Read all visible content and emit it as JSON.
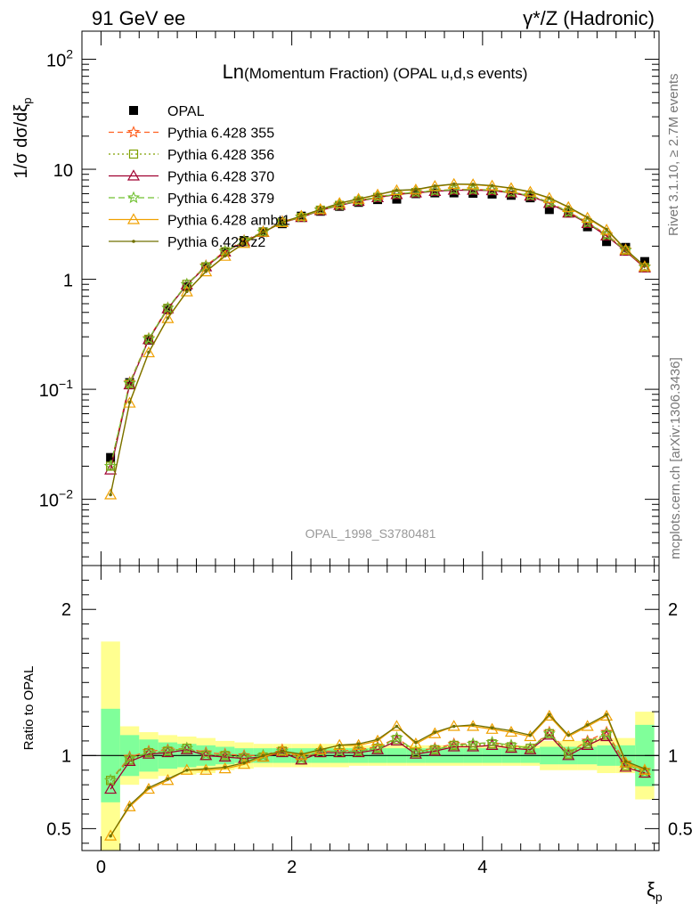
{
  "header": {
    "left": "91 GeV ee",
    "right": "γ*/Z (Hadronic)"
  },
  "side_labels": {
    "rivet": "Rivet 3.1.10, ≥ 2.7M events",
    "mcplots": "mcplots.cern.ch [arXiv:1306.3436]"
  },
  "colors": {
    "opal": "#000000",
    "p355": "#ff6020",
    "p356": "#80a000",
    "p370": "#a00030",
    "p379": "#70c030",
    "ambt1": "#f0a000",
    "z2": "#707000",
    "band_inner": "#80ff9a",
    "band_outer": "#ffff90"
  },
  "chart_data": [
    {
      "type": "scatter",
      "title_main": "Ln",
      "title_rest": "(Momentum Fraction) (OPAL u,d,s events)",
      "ylabel": "1/σ dσ/dξ",
      "ylabel_sub": "p",
      "watermark": "OPAL_1998_S3780481",
      "yscale": "log",
      "ylim": [
        0.0025,
        180
      ],
      "xlim": [
        -0.2,
        5.85
      ],
      "yticks": [
        {
          "v": 0.01,
          "label": "10",
          "exp": "−2"
        },
        {
          "v": 0.1,
          "label": "10",
          "exp": "−1"
        },
        {
          "v": 1,
          "label": "1",
          "exp": ""
        },
        {
          "v": 10,
          "label": "10",
          "exp": ""
        },
        {
          "v": 100,
          "label": "10",
          "exp": "2"
        }
      ],
      "x": [
        0.1,
        0.3,
        0.5,
        0.7,
        0.9,
        1.1,
        1.3,
        1.5,
        1.7,
        1.9,
        2.1,
        2.3,
        2.5,
        2.7,
        2.9,
        3.1,
        3.3,
        3.5,
        3.7,
        3.9,
        4.1,
        4.3,
        4.5,
        4.7,
        4.9,
        5.1,
        5.3,
        5.5,
        5.7
      ],
      "series": [
        {
          "name": "OPAL",
          "key": "opal",
          "marker": "square",
          "values": [
            0.024,
            0.115,
            0.28,
            0.53,
            0.86,
            1.3,
            1.78,
            2.25,
            2.7,
            3.2,
            3.75,
            4.15,
            4.6,
            5.0,
            5.3,
            5.35,
            6.0,
            6.1,
            6.1,
            6.05,
            5.95,
            5.8,
            5.5,
            4.3,
            4.0,
            3.0,
            2.2,
            1.95,
            1.45
          ]
        },
        {
          "name": "Pythia 6.428 355",
          "key": "p355",
          "marker": "star",
          "dash": "6,4",
          "values": [
            0.02,
            0.115,
            0.29,
            0.55,
            0.9,
            1.33,
            1.8,
            2.25,
            2.7,
            3.35,
            3.7,
            4.3,
            4.75,
            5.2,
            5.6,
            6.0,
            6.2,
            6.4,
            6.55,
            6.55,
            6.5,
            6.2,
            5.8,
            5.0,
            4.1,
            3.3,
            2.55,
            1.85,
            1.3
          ]
        },
        {
          "name": "Pythia 6.428 356",
          "key": "p356",
          "marker": "opensquare",
          "dash": "2,3",
          "values": [
            0.02,
            0.112,
            0.285,
            0.545,
            0.9,
            1.3,
            1.78,
            2.2,
            2.68,
            3.3,
            3.65,
            4.25,
            4.7,
            5.15,
            5.55,
            5.95,
            6.15,
            6.35,
            6.5,
            6.5,
            6.45,
            6.15,
            5.75,
            4.95,
            4.05,
            3.25,
            2.5,
            1.82,
            1.28
          ]
        },
        {
          "name": "Pythia 6.428 370",
          "key": "p370",
          "marker": "triangle",
          "dash": "",
          "values": [
            0.0185,
            0.11,
            0.283,
            0.54,
            0.89,
            1.3,
            1.77,
            2.2,
            2.67,
            3.28,
            3.65,
            4.22,
            4.7,
            5.12,
            5.52,
            5.9,
            6.1,
            6.3,
            6.45,
            6.45,
            6.4,
            6.1,
            5.7,
            4.9,
            4.0,
            3.22,
            2.48,
            1.8,
            1.27
          ]
        },
        {
          "name": "Pythia 6.428 379",
          "key": "p379",
          "marker": "star",
          "dash": "7,4",
          "values": [
            0.02,
            0.113,
            0.287,
            0.547,
            0.9,
            1.31,
            1.79,
            2.22,
            2.69,
            3.31,
            3.67,
            4.27,
            4.72,
            5.17,
            5.57,
            5.97,
            6.17,
            6.37,
            6.52,
            6.52,
            6.47,
            6.17,
            5.77,
            4.97,
            4.07,
            3.27,
            2.52,
            1.83,
            1.29
          ]
        },
        {
          "name": "Pythia 6.428 ambt1",
          "key": "ambt1",
          "marker": "triangle",
          "dash": "",
          "values": [
            0.011,
            0.075,
            0.215,
            0.44,
            0.77,
            1.17,
            1.62,
            2.12,
            2.68,
            3.28,
            3.75,
            4.3,
            4.9,
            5.35,
            5.85,
            6.4,
            6.5,
            7.0,
            7.3,
            7.25,
            7.05,
            6.7,
            6.2,
            5.45,
            4.5,
            3.6,
            2.8,
            1.85,
            1.3
          ]
        },
        {
          "name": "Pythia 6.428 z2",
          "key": "z2",
          "marker": "dot",
          "dash": "",
          "values": [
            0.011,
            0.076,
            0.217,
            0.445,
            0.775,
            1.18,
            1.63,
            2.13,
            2.69,
            3.29,
            3.77,
            4.32,
            4.92,
            5.38,
            5.88,
            6.43,
            6.55,
            7.05,
            7.35,
            7.3,
            7.1,
            6.75,
            6.25,
            5.5,
            4.55,
            3.65,
            2.85,
            1.87,
            1.32
          ]
        }
      ]
    },
    {
      "type": "scatter",
      "ylabel": "Ratio to OPAL",
      "xlabel": "ξ",
      "xlabel_sub": "p",
      "ylim": [
        0.35,
        2.3
      ],
      "xlim": [
        -0.2,
        5.85
      ],
      "xticks": [
        0,
        2,
        4
      ],
      "yticks": [
        0.5,
        1,
        2
      ],
      "bands": {
        "x": [
          0.1,
          0.3,
          0.5,
          0.7,
          0.9,
          1.1,
          1.3,
          1.5,
          1.7,
          1.9,
          2.1,
          2.3,
          2.5,
          2.7,
          2.9,
          3.1,
          3.3,
          3.5,
          3.7,
          3.9,
          4.1,
          4.3,
          4.5,
          4.7,
          4.9,
          5.1,
          5.3,
          5.5,
          5.7
        ],
        "inner": [
          0.32,
          0.14,
          0.11,
          0.09,
          0.08,
          0.07,
          0.06,
          0.05,
          0.05,
          0.05,
          0.05,
          0.05,
          0.05,
          0.05,
          0.05,
          0.05,
          0.05,
          0.05,
          0.05,
          0.05,
          0.05,
          0.05,
          0.05,
          0.06,
          0.06,
          0.06,
          0.07,
          0.07,
          0.21
        ],
        "outer": [
          0.78,
          0.2,
          0.16,
          0.14,
          0.13,
          0.12,
          0.1,
          0.09,
          0.08,
          0.08,
          0.08,
          0.08,
          0.08,
          0.07,
          0.07,
          0.07,
          0.07,
          0.07,
          0.07,
          0.07,
          0.07,
          0.07,
          0.07,
          0.1,
          0.1,
          0.1,
          0.12,
          0.12,
          0.3
        ]
      },
      "series": [
        {
          "key": "p355",
          "marker": "star",
          "dash": "6,4",
          "values": [
            0.83,
            0.99,
            1.03,
            1.04,
            1.05,
            1.02,
            1.01,
            1.0,
            1.0,
            1.04,
            0.98,
            1.03,
            1.03,
            1.04,
            1.06,
            1.12,
            1.03,
            1.05,
            1.08,
            1.08,
            1.09,
            1.07,
            1.05,
            1.16,
            1.02,
            1.1,
            1.16,
            0.95,
            0.9
          ]
        },
        {
          "key": "p356",
          "marker": "opensquare",
          "dash": "2,3",
          "values": [
            0.83,
            0.97,
            1.02,
            1.03,
            1.05,
            1.0,
            1.0,
            0.98,
            0.99,
            1.03,
            0.97,
            1.02,
            1.02,
            1.03,
            1.05,
            1.11,
            1.02,
            1.04,
            1.07,
            1.07,
            1.08,
            1.06,
            1.05,
            1.15,
            1.01,
            1.08,
            1.14,
            0.93,
            0.88
          ]
        },
        {
          "key": "p370",
          "marker": "triangle",
          "dash": "",
          "values": [
            0.77,
            0.96,
            1.01,
            1.02,
            1.04,
            1.0,
            0.99,
            0.98,
            0.99,
            1.02,
            0.97,
            1.02,
            1.02,
            1.02,
            1.04,
            1.1,
            1.01,
            1.03,
            1.06,
            1.06,
            1.07,
            1.05,
            1.04,
            1.14,
            1.0,
            1.07,
            1.13,
            0.92,
            0.88
          ]
        },
        {
          "key": "p379",
          "marker": "star",
          "dash": "7,4",
          "values": [
            0.83,
            0.98,
            1.02,
            1.03,
            1.05,
            1.01,
            1.0,
            0.99,
            1.0,
            1.03,
            0.98,
            1.03,
            1.03,
            1.03,
            1.05,
            1.12,
            1.03,
            1.04,
            1.07,
            1.08,
            1.09,
            1.07,
            1.05,
            1.15,
            1.02,
            1.09,
            1.15,
            0.94,
            0.89
          ]
        },
        {
          "key": "ambt1",
          "marker": "triangle",
          "dash": "",
          "values": [
            0.45,
            0.65,
            0.77,
            0.83,
            0.9,
            0.9,
            0.91,
            0.94,
            0.99,
            1.03,
            1.0,
            1.04,
            1.07,
            1.07,
            1.1,
            1.2,
            1.08,
            1.15,
            1.2,
            1.2,
            1.18,
            1.16,
            1.13,
            1.27,
            1.13,
            1.2,
            1.27,
            0.95,
            0.9
          ]
        },
        {
          "key": "z2",
          "marker": "dot",
          "dash": "",
          "values": [
            0.45,
            0.66,
            0.78,
            0.84,
            0.9,
            0.91,
            0.92,
            0.95,
            1.0,
            1.03,
            1.01,
            1.04,
            1.07,
            1.08,
            1.11,
            1.2,
            1.09,
            1.16,
            1.2,
            1.21,
            1.19,
            1.17,
            1.14,
            1.28,
            1.14,
            1.21,
            1.28,
            0.96,
            0.91
          ]
        }
      ]
    }
  ]
}
